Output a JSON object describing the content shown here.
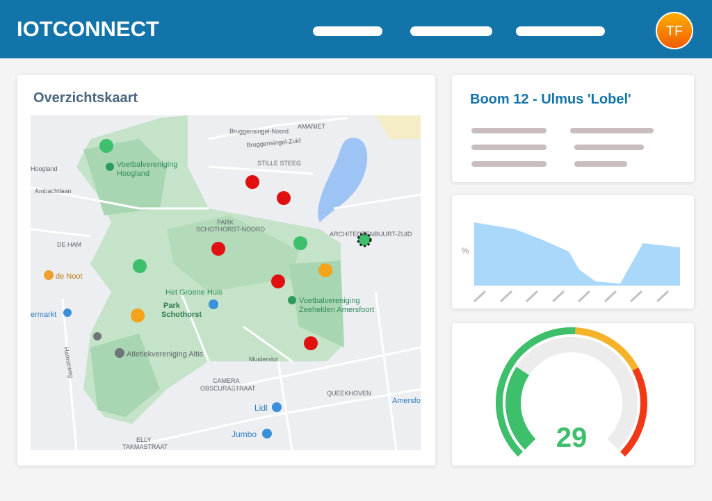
{
  "header": {
    "brand": "IOTCONNECT",
    "avatar": "TF"
  },
  "map": {
    "title": "Overzichtskaart",
    "labels": [
      "Hoogland",
      "Voetbalvereniging",
      "Hoogland",
      "Ambachtlaan",
      "DE HAM",
      "de Noot",
      "Het Groene Huis",
      "Park",
      "Schothorst",
      "Atletiekvereniging Altis",
      "Hamseweg",
      "PARK",
      "SCHOTHORST-NOORD",
      "STILLE STEEG",
      "AMANIET",
      "Bruggensingel-Noord",
      "Bruggensingel-Zuid",
      "ARCHITECTENBUURT-ZUID",
      "Voetbalvereniging",
      "Zeehelden Amersfoort",
      "CAMERA",
      "OBSCURASTRAAT",
      "QUEEKHOVEN",
      "Lidl",
      "Jumbo",
      "ELLY",
      "TAKMASTRAAT",
      "Muiderslot",
      "Amersfo",
      "ermarkt"
    ]
  },
  "tree": {
    "title": "Boom 12 - Ulmus 'Lobel'"
  },
  "chart_data": {
    "type": "area",
    "y_label": "%",
    "color": "#a9d8fb",
    "x": [
      0,
      20,
      33,
      46,
      51,
      59,
      71,
      82,
      100
    ],
    "values": [
      91,
      81,
      66,
      49,
      23,
      6,
      3,
      61,
      55
    ],
    "xlim": [
      0,
      100
    ],
    "ylim": [
      0,
      100
    ]
  },
  "gauge": {
    "value": 29,
    "min": 0,
    "max": 100,
    "color": "#3dbf6c"
  }
}
